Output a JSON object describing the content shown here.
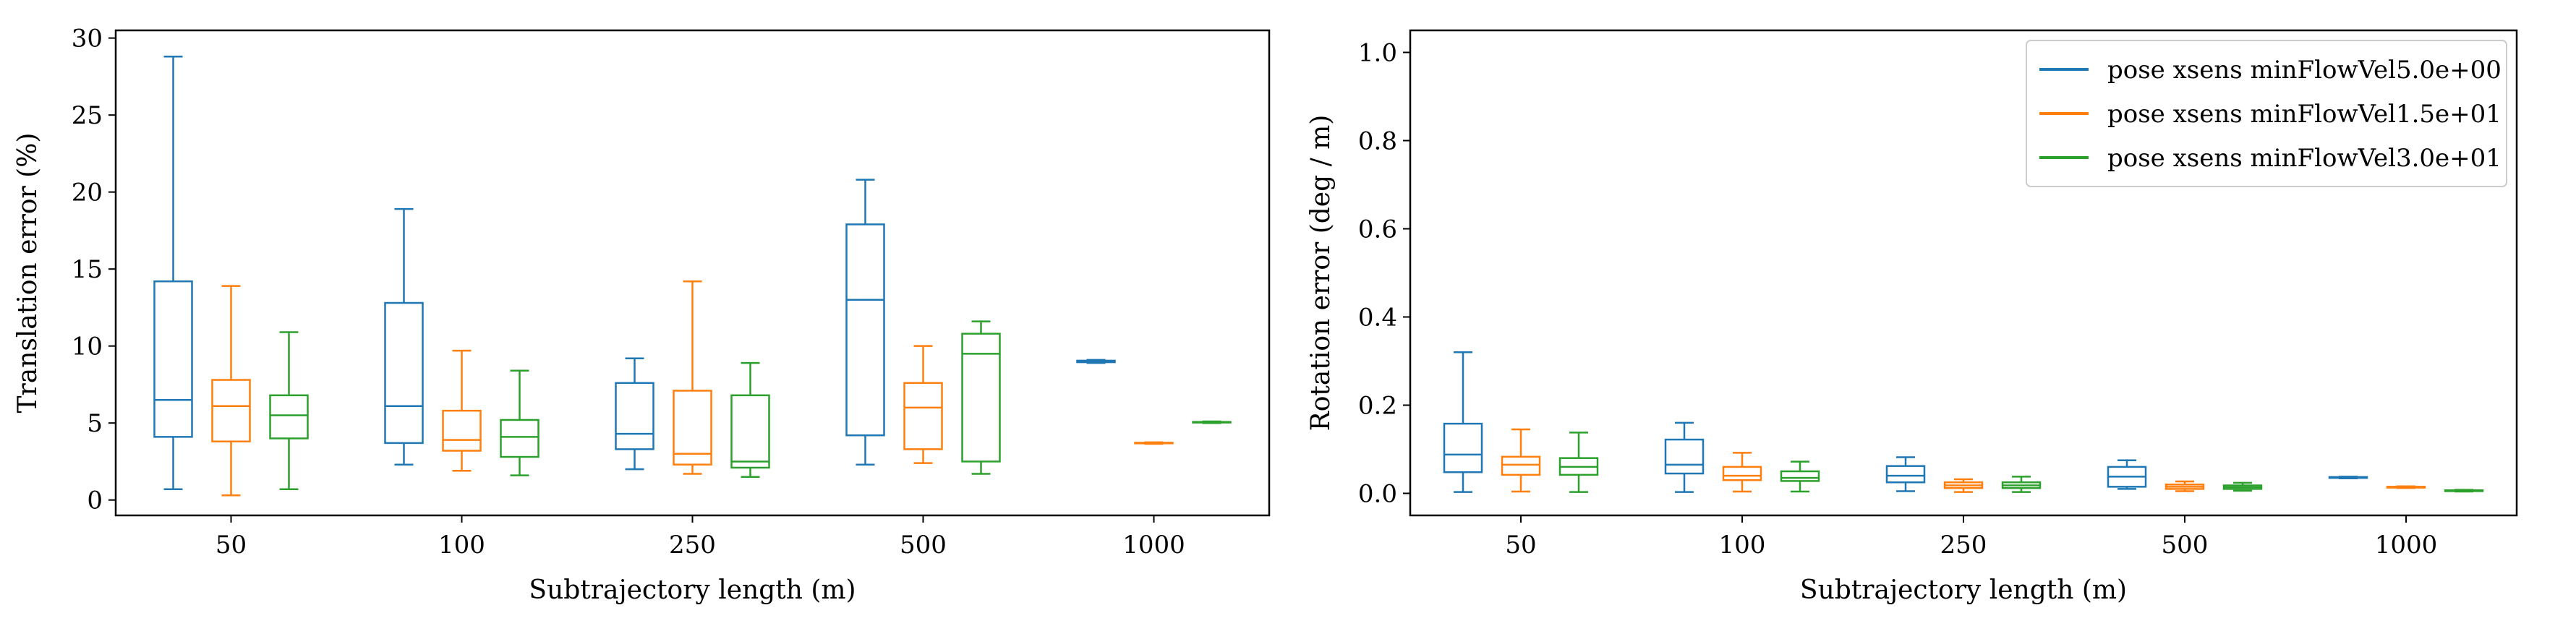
{
  "chart_data": [
    {
      "type": "box",
      "xlabel": "Subtrajectory length (m)",
      "ylabel": "Translation error (%)",
      "categories": [
        "50",
        "100",
        "250",
        "500",
        "1000"
      ],
      "ylim": [
        -1,
        30.5
      ],
      "yticks": [
        0,
        5,
        10,
        15,
        20,
        25,
        30
      ],
      "series": [
        {
          "name": "pose xsens minFlowVel5.0e+00",
          "color": "#1f77b4",
          "boxes": [
            {
              "whislo": 0.7,
              "q1": 4.1,
              "med": 6.5,
              "q3": 14.2,
              "whishi": 28.8
            },
            {
              "whislo": 2.3,
              "q1": 3.7,
              "med": 6.1,
              "q3": 12.8,
              "whishi": 18.9
            },
            {
              "whislo": 2.0,
              "q1": 3.3,
              "med": 4.3,
              "q3": 7.6,
              "whishi": 9.2
            },
            {
              "whislo": 2.3,
              "q1": 4.2,
              "med": 13.0,
              "q3": 17.9,
              "whishi": 20.8
            },
            {
              "whislo": 8.9,
              "q1": 8.95,
              "med": 9.0,
              "q3": 9.05,
              "whishi": 9.1
            }
          ]
        },
        {
          "name": "pose xsens minFlowVel1.5e+01",
          "color": "#ff7f0e",
          "boxes": [
            {
              "whislo": 0.3,
              "q1": 3.8,
              "med": 6.1,
              "q3": 7.8,
              "whishi": 13.9
            },
            {
              "whislo": 1.9,
              "q1": 3.2,
              "med": 3.9,
              "q3": 5.8,
              "whishi": 9.7
            },
            {
              "whislo": 1.7,
              "q1": 2.3,
              "med": 3.0,
              "q3": 7.1,
              "whishi": 14.2
            },
            {
              "whislo": 2.4,
              "q1": 3.3,
              "med": 6.0,
              "q3": 7.6,
              "whishi": 10.0
            },
            {
              "whislo": 3.65,
              "q1": 3.68,
              "med": 3.7,
              "q3": 3.72,
              "whishi": 3.75
            }
          ]
        },
        {
          "name": "pose xsens minFlowVel3.0e+01",
          "color": "#2ca02c",
          "boxes": [
            {
              "whislo": 0.7,
              "q1": 4.0,
              "med": 5.5,
              "q3": 6.8,
              "whishi": 10.9
            },
            {
              "whislo": 1.6,
              "q1": 2.8,
              "med": 4.1,
              "q3": 5.2,
              "whishi": 8.4
            },
            {
              "whislo": 1.5,
              "q1": 2.1,
              "med": 2.5,
              "q3": 6.8,
              "whishi": 8.9
            },
            {
              "whislo": 1.7,
              "q1": 2.5,
              "med": 9.5,
              "q3": 10.8,
              "whishi": 11.6
            },
            {
              "whislo": 5.0,
              "q1": 5.03,
              "med": 5.05,
              "q3": 5.07,
              "whishi": 5.1
            }
          ]
        }
      ]
    },
    {
      "type": "box",
      "xlabel": "Subtrajectory length (m)",
      "ylabel": "Rotation error (deg / m)",
      "categories": [
        "50",
        "100",
        "250",
        "500",
        "1000"
      ],
      "ylim": [
        -0.05,
        1.05
      ],
      "yticks": [
        0.0,
        0.2,
        0.4,
        0.6,
        0.8,
        1.0
      ],
      "ytick_labels": [
        "0.0",
        "0.2",
        "0.4",
        "0.6",
        "0.8",
        "1.0"
      ],
      "legend": {
        "position": "top-right"
      },
      "series": [
        {
          "name": "pose xsens minFlowVel5.0e+00",
          "color": "#1f77b4",
          "boxes": [
            {
              "whislo": 0.003,
              "q1": 0.048,
              "med": 0.088,
              "q3": 0.158,
              "whishi": 0.32
            },
            {
              "whislo": 0.003,
              "q1": 0.045,
              "med": 0.065,
              "q3": 0.122,
              "whishi": 0.16
            },
            {
              "whislo": 0.005,
              "q1": 0.025,
              "med": 0.04,
              "q3": 0.062,
              "whishi": 0.082
            },
            {
              "whislo": 0.01,
              "q1": 0.015,
              "med": 0.038,
              "q3": 0.06,
              "whishi": 0.075
            },
            {
              "whislo": 0.034,
              "q1": 0.035,
              "med": 0.036,
              "q3": 0.037,
              "whishi": 0.038
            }
          ]
        },
        {
          "name": "pose xsens minFlowVel1.5e+01",
          "color": "#ff7f0e",
          "boxes": [
            {
              "whislo": 0.004,
              "q1": 0.042,
              "med": 0.065,
              "q3": 0.083,
              "whishi": 0.145
            },
            {
              "whislo": 0.004,
              "q1": 0.03,
              "med": 0.04,
              "q3": 0.06,
              "whishi": 0.092
            },
            {
              "whislo": 0.003,
              "q1": 0.012,
              "med": 0.018,
              "q3": 0.025,
              "whishi": 0.032
            },
            {
              "whislo": 0.005,
              "q1": 0.01,
              "med": 0.015,
              "q3": 0.02,
              "whishi": 0.027
            },
            {
              "whislo": 0.012,
              "q1": 0.013,
              "med": 0.014,
              "q3": 0.015,
              "whishi": 0.016
            }
          ]
        },
        {
          "name": "pose xsens minFlowVel3.0e+01",
          "color": "#2ca02c",
          "boxes": [
            {
              "whislo": 0.003,
              "q1": 0.042,
              "med": 0.06,
              "q3": 0.08,
              "whishi": 0.138
            },
            {
              "whislo": 0.004,
              "q1": 0.028,
              "med": 0.035,
              "q3": 0.05,
              "whishi": 0.072
            },
            {
              "whislo": 0.003,
              "q1": 0.012,
              "med": 0.018,
              "q3": 0.025,
              "whishi": 0.038
            },
            {
              "whislo": 0.006,
              "q1": 0.01,
              "med": 0.014,
              "q3": 0.018,
              "whishi": 0.024
            },
            {
              "whislo": 0.004,
              "q1": 0.005,
              "med": 0.006,
              "q3": 0.007,
              "whishi": 0.008
            }
          ]
        }
      ]
    }
  ]
}
